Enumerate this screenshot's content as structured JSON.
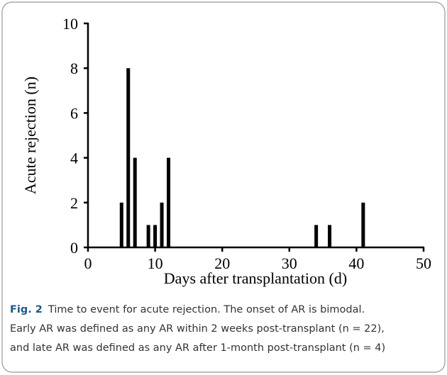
{
  "chart_data": {
    "type": "bar",
    "x": [
      5,
      6,
      7,
      9,
      10,
      11,
      12,
      34,
      36,
      41
    ],
    "values": [
      2,
      8,
      4,
      1,
      1,
      2,
      4,
      1,
      1,
      2
    ],
    "color": "#000000",
    "xlim": [
      0,
      50
    ],
    "xticks": [
      0,
      10,
      20,
      30,
      40,
      50
    ],
    "ylim": [
      0,
      10
    ],
    "yticks": [
      0,
      2,
      4,
      6,
      8,
      10
    ],
    "xlabel": "Days after transplantation (d)",
    "ylabel": "Acute rejection (n)",
    "grid": false
  },
  "caption": {
    "label": "Fig. 2",
    "lines": [
      "Time to event for acute rejection. The onset of AR is bimodal.",
      "Early AR was defined as any AR within 2 weeks post-transplant (n = 22),",
      "and late AR was defined as any AR after 1-month post-transplant (n = 4)"
    ]
  }
}
